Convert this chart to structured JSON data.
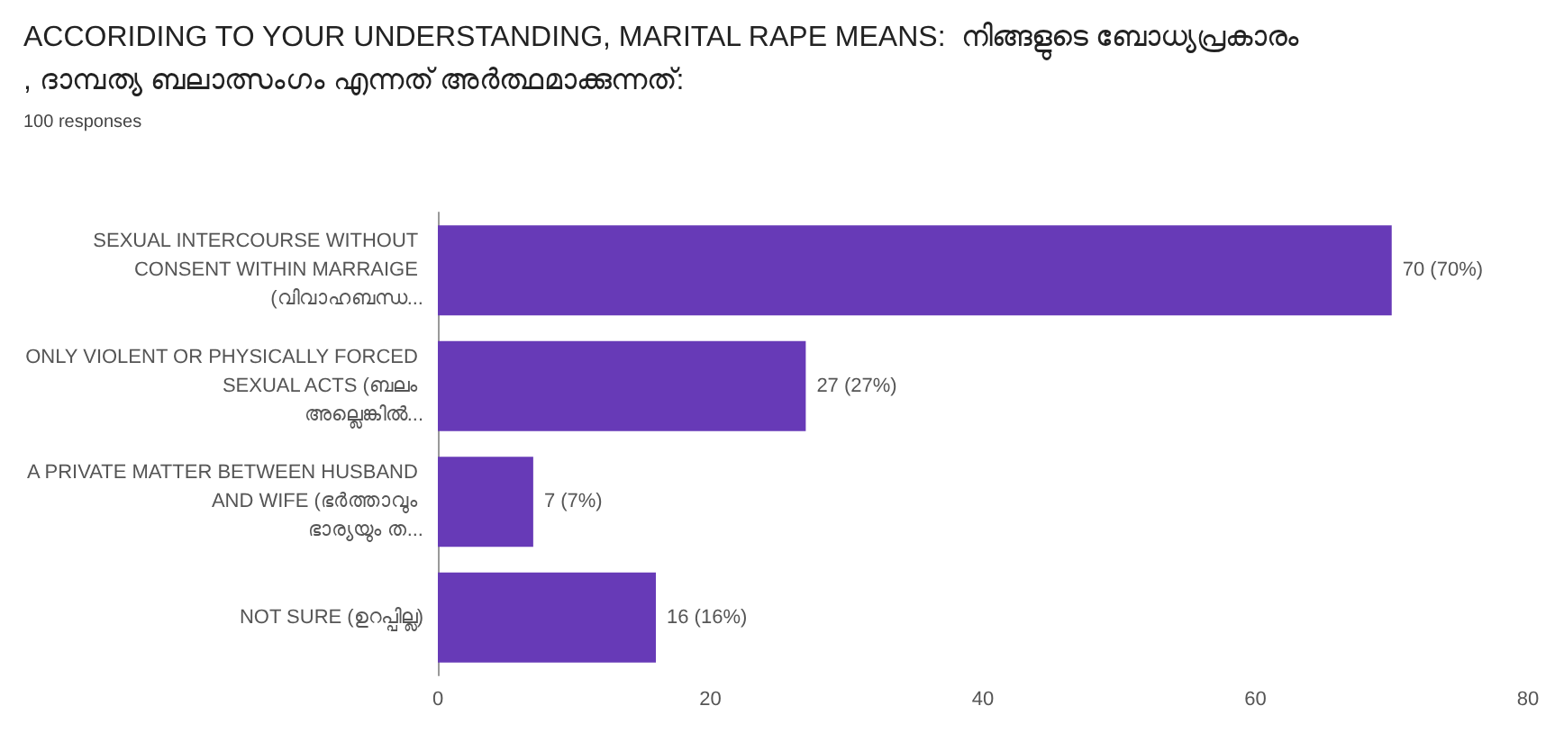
{
  "chart_data": {
    "type": "bar",
    "orientation": "horizontal",
    "title": "ACCORIDING TO YOUR UNDERSTANDING, MARITAL RAPE MEANS:  നിങ്ങളുടെ ബോധ്യപ്രകാരം, ദാമ്പത്യ ബലാത്സംഗം എന്നത് അർത്ഥമാക്കുന്നത്:",
    "subtitle": "100 responses",
    "categories": [
      "SEXUAL INTERCOURSE WITHOUT CONSENT WITHIN MARRAIGE (വിവാഹബന്ധ...",
      "ONLY VIOLENT OR PHYSICALLY FORCED SEXUAL ACTS (ബലം അല്ലെങ്കിൽ...",
      "A PRIVATE MATTER BETWEEN HUSBAND AND WIFE (ഭർത്താവും ഭാര്യയും ത...",
      "NOT SURE (ഉറപ്പില്ല)"
    ],
    "values": [
      70,
      27,
      7,
      16
    ],
    "value_labels": [
      "70 (70%)",
      "27 (27%)",
      "7 (7%)",
      "16 (16%)"
    ],
    "color": "#673ab7",
    "xlim": [
      0,
      80
    ],
    "xticks": [
      0,
      20,
      40,
      60,
      80
    ],
    "grid": false
  }
}
